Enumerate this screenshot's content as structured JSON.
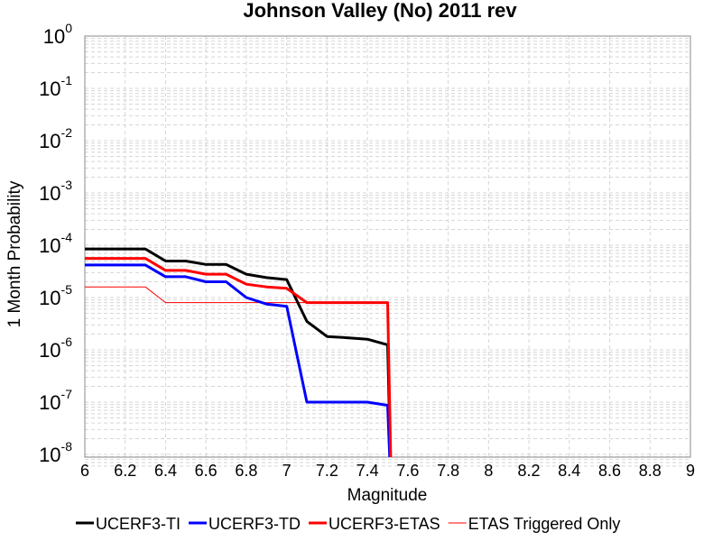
{
  "chart_data": {
    "type": "line",
    "title": "Johnson Valley (No) 2011 rev",
    "xlabel": "Magnitude",
    "ylabel": "1 Month Probability",
    "xlim": [
      6,
      9
    ],
    "ylim": [
      6e-09,
      1
    ],
    "yscale": "log",
    "grid": true,
    "legend_position": "bottom",
    "x_ticks": [
      "6",
      "6.2",
      "6.4",
      "6.6",
      "6.8",
      "7",
      "7.2",
      "7.4",
      "7.6",
      "7.8",
      "8",
      "8.2",
      "8.4",
      "8.6",
      "8.8",
      "9"
    ],
    "y_ticks": [
      {
        "value": 1e-08,
        "base": "10",
        "exp": "-8"
      },
      {
        "value": 1e-07,
        "base": "10",
        "exp": "-7"
      },
      {
        "value": 1e-06,
        "base": "10",
        "exp": "-6"
      },
      {
        "value": 1e-05,
        "base": "10",
        "exp": "-5"
      },
      {
        "value": 0.0001,
        "base": "10",
        "exp": "-4"
      },
      {
        "value": 0.001,
        "base": "10",
        "exp": "-3"
      },
      {
        "value": 0.01,
        "base": "10",
        "exp": "-2"
      },
      {
        "value": 0.1,
        "base": "10",
        "exp": "-1"
      },
      {
        "value": 1,
        "base": "10",
        "exp": "0"
      }
    ],
    "series": [
      {
        "name": "UCERF3-TI",
        "color": "#000000",
        "width": 3,
        "x": [
          6.0,
          6.1,
          6.2,
          6.3,
          6.4,
          6.5,
          6.6,
          6.7,
          6.8,
          6.9,
          7.0,
          7.1,
          7.2,
          7.3,
          7.4,
          7.5,
          7.52
        ],
        "y": [
          8.5e-05,
          8.5e-05,
          8.5e-05,
          8.5e-05,
          5e-05,
          5e-05,
          4.3e-05,
          4.3e-05,
          2.8e-05,
          2.4e-05,
          2.2e-05,
          3.5e-06,
          1.8e-06,
          1.7e-06,
          1.6e-06,
          1.25e-06,
          1e-09
        ]
      },
      {
        "name": "UCERF3-TD",
        "color": "#0000ff",
        "width": 3,
        "x": [
          6.0,
          6.1,
          6.2,
          6.3,
          6.4,
          6.5,
          6.6,
          6.7,
          6.8,
          6.9,
          7.0,
          7.1,
          7.2,
          7.3,
          7.4,
          7.5,
          7.52
        ],
        "y": [
          4.2e-05,
          4.2e-05,
          4.2e-05,
          4.2e-05,
          2.5e-05,
          2.5e-05,
          2e-05,
          2e-05,
          1e-05,
          7.5e-06,
          6.8e-06,
          1e-07,
          1e-07,
          1e-07,
          1e-07,
          8.7e-08,
          1e-09
        ]
      },
      {
        "name": "UCERF3-ETAS",
        "color": "#ff0000",
        "width": 3,
        "x": [
          6.0,
          6.1,
          6.2,
          6.3,
          6.4,
          6.5,
          6.6,
          6.7,
          6.8,
          6.9,
          7.0,
          7.1,
          7.2,
          7.3,
          7.4,
          7.5,
          7.52
        ],
        "y": [
          5.6e-05,
          5.6e-05,
          5.6e-05,
          5.6e-05,
          3.3e-05,
          3.3e-05,
          2.8e-05,
          2.8e-05,
          1.8e-05,
          1.6e-05,
          1.5e-05,
          8e-06,
          8e-06,
          8e-06,
          8e-06,
          8e-06,
          1e-09
        ]
      },
      {
        "name": "ETAS Triggered Only",
        "color": "#ff0000",
        "width": 1,
        "x": [
          6.0,
          6.1,
          6.2,
          6.3,
          6.4,
          6.5,
          6.6,
          6.7,
          6.8,
          6.9,
          7.0,
          7.1,
          7.2,
          7.3,
          7.4,
          7.5,
          7.52
        ],
        "y": [
          1.6e-05,
          1.6e-05,
          1.6e-05,
          1.6e-05,
          8e-06,
          8e-06,
          8e-06,
          8e-06,
          8e-06,
          8e-06,
          8e-06,
          8e-06,
          8e-06,
          8e-06,
          8e-06,
          8e-06,
          1e-09
        ]
      }
    ]
  }
}
